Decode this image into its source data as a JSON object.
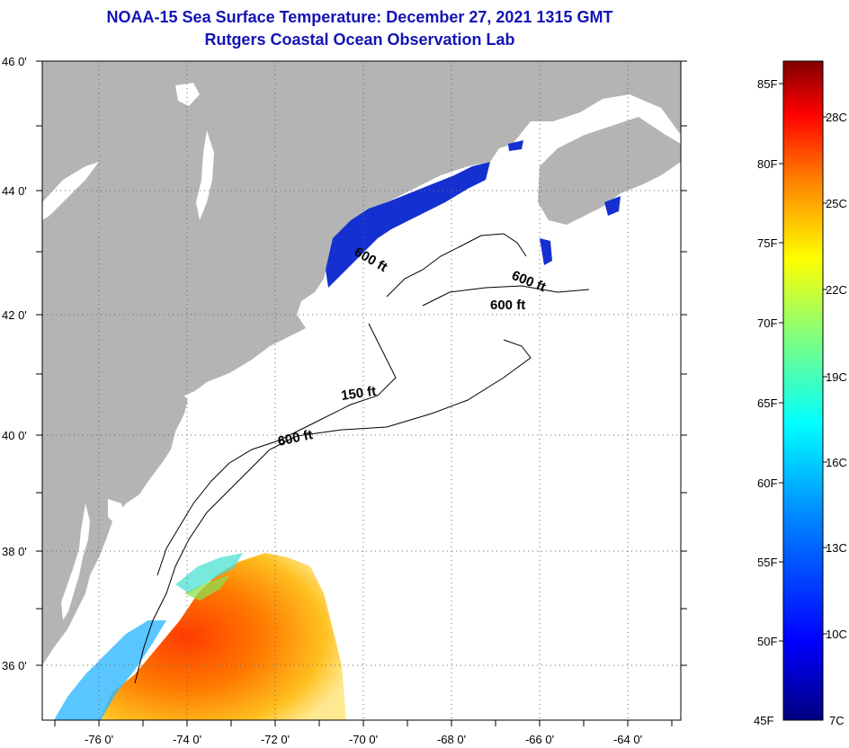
{
  "header": {
    "title": "NOAA-15 Sea Surface Temperature:  December 27, 2021 1315 GMT",
    "subtitle": "Rutgers Coastal Ocean Observation Lab"
  },
  "map": {
    "lat_labels": [
      "46 0'",
      "44 0'",
      "42 0'",
      "40 0'",
      "38 0'",
      "36 0'"
    ],
    "lon_labels": [
      "-76 0'",
      "-74 0'",
      "-72 0'",
      "-70 0'",
      "-68 0'",
      "-66 0'",
      "-64 0'"
    ],
    "contour_labels": [
      "600 ft",
      "600 ft",
      "600 ft",
      "150 ft",
      "600 ft"
    ],
    "colors": {
      "land": "#b4b4b4",
      "water": "#ffffff",
      "cold_sst": "#1430d0"
    }
  },
  "colorbar": {
    "fahrenheit": [
      "85F",
      "80F",
      "75F",
      "70F",
      "65F",
      "60F",
      "55F",
      "50F",
      "45F"
    ],
    "celsius": [
      "28C",
      "25C",
      "22C",
      "19C",
      "16C",
      "13C",
      "10C",
      "7C"
    ],
    "gradient": [
      "#000080",
      "#0000ff",
      "#0080ff",
      "#00ffff",
      "#80ff80",
      "#ffff00",
      "#ff8000",
      "#ff0000",
      "#800000"
    ]
  }
}
